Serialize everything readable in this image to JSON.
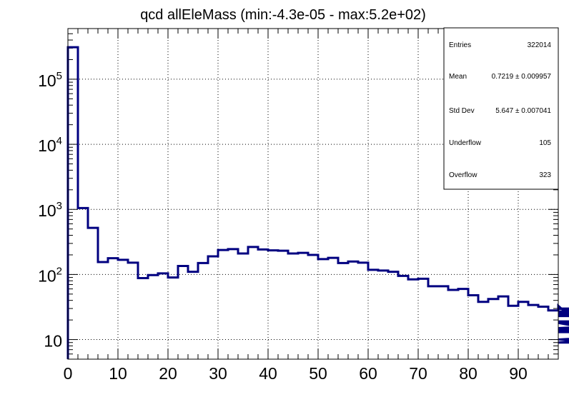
{
  "chart_data": {
    "type": "line",
    "title": "qcd allEleMass (min:-4.3e-05 - max:5.2e+02)",
    "xlabel": "",
    "ylabel": "",
    "x_range": [
      0,
      98
    ],
    "y_range": [
      5,
      600000
    ],
    "y_scale": "log",
    "grid": true,
    "bin_width": 2,
    "x_ticks": [
      "0",
      "10",
      "20",
      "30",
      "40",
      "50",
      "60",
      "70",
      "80",
      "90"
    ],
    "y_ticks": [
      {
        "value": 10,
        "label": "10",
        "exp": ""
      },
      {
        "value": 100,
        "label": "10",
        "exp": "2"
      },
      {
        "value": 1000,
        "label": "10",
        "exp": "3"
      },
      {
        "value": 10000,
        "label": "10",
        "exp": "4"
      },
      {
        "value": 100000,
        "label": "10",
        "exp": "5"
      }
    ],
    "series": [
      {
        "color": "#000080",
        "values": [
          310000,
          1050,
          520,
          155,
          178,
          168,
          152,
          88,
          98,
          104,
          90,
          135,
          110,
          150,
          190,
          238,
          245,
          210,
          265,
          242,
          235,
          232,
          210,
          215,
          200,
          172,
          180,
          150,
          158,
          152,
          118,
          115,
          110,
          95,
          84,
          86,
          66,
          66,
          58,
          60,
          48,
          38,
          42,
          46,
          33,
          38,
          34,
          32,
          28,
          33,
          24,
          30,
          25,
          27,
          23,
          27,
          25,
          13,
          19,
          18,
          9,
          15,
          19,
          10,
          14
        ]
      }
    ]
  },
  "stats_box": {
    "rows": [
      {
        "label": "Entries",
        "value": "322014"
      },
      {
        "label": "Mean",
        "value": "0.7219 ± 0.009957"
      },
      {
        "label": "Std Dev",
        "value": "5.647 ± 0.007041"
      },
      {
        "label": "Underflow",
        "value": "105"
      },
      {
        "label": "Overflow",
        "value": "323"
      }
    ]
  }
}
